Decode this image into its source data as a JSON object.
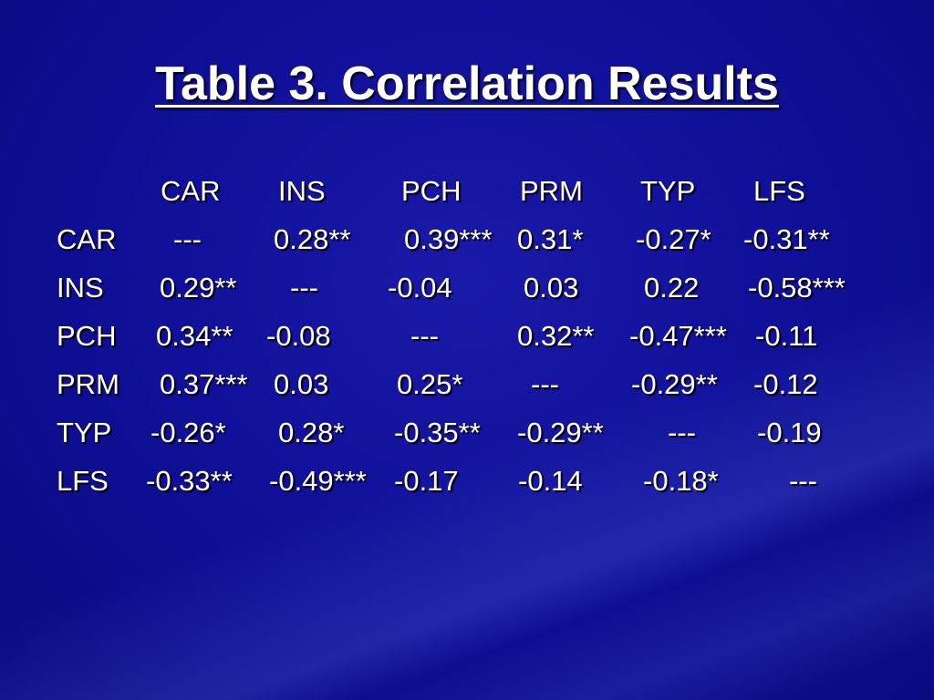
{
  "title": "Table 3.  Correlation Results",
  "table": {
    "header": [
      "CAR",
      "INS",
      "PCH",
      "PRM",
      "TYP",
      "LFS"
    ],
    "rows": [
      [
        "CAR",
        "---",
        "0.28**",
        "0.39***",
        "0.31*",
        "-0.27*",
        "-0.31**"
      ],
      [
        "INS",
        "0.29**",
        "---",
        "-0.04",
        "0.03",
        "0.22",
        "-0.58***"
      ],
      [
        "PCH",
        "0.34**",
        "-0.08",
        "---",
        "0.32**",
        "-0.47***",
        "-0.11"
      ],
      [
        "PRM",
        "0.37***",
        "0.03",
        "0.25*",
        "---",
        "-0.29**",
        "-0.12"
      ],
      [
        "TYP",
        "-0.26*",
        "0.28*",
        "-0.35**",
        "-0.29**",
        "---",
        "-0.19"
      ],
      [
        "LFS",
        "-0.33**",
        "-0.49***",
        "-0.17",
        "-0.14",
        "-0.18*",
        "---"
      ]
    ]
  }
}
